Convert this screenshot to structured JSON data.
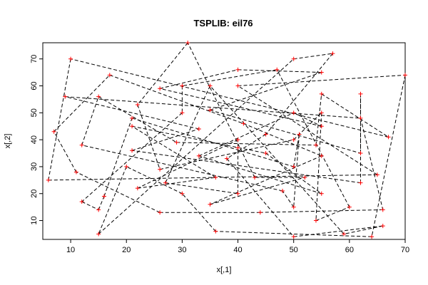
{
  "chart_data": {
    "type": "line",
    "title": "TSPLIB: eil76",
    "xlabel": "x[,1]",
    "ylabel": "x[,2]",
    "xlim": [
      5,
      70
    ],
    "ylim": [
      3,
      76
    ],
    "xticks": [
      10,
      20,
      30,
      40,
      50,
      60,
      70
    ],
    "yticks": [
      10,
      20,
      30,
      40,
      50,
      60,
      70
    ],
    "grid": false,
    "line_style": "dashed",
    "line_color": "#000000",
    "point_color": "#ff0000",
    "point_marker": "plus",
    "points": [
      [
        22,
        22
      ],
      [
        36,
        26
      ],
      [
        21,
        45
      ],
      [
        45,
        35
      ],
      [
        55,
        20
      ],
      [
        33,
        34
      ],
      [
        50,
        50
      ],
      [
        55,
        45
      ],
      [
        26,
        59
      ],
      [
        40,
        66
      ],
      [
        55,
        65
      ],
      [
        35,
        51
      ],
      [
        62,
        35
      ],
      [
        62,
        57
      ],
      [
        62,
        24
      ],
      [
        21,
        36
      ],
      [
        33,
        44
      ],
      [
        9,
        56
      ],
      [
        62,
        48
      ],
      [
        66,
        14
      ],
      [
        44,
        13
      ],
      [
        26,
        13
      ],
      [
        11,
        28
      ],
      [
        7,
        43
      ],
      [
        17,
        64
      ],
      [
        41,
        46
      ],
      [
        55,
        34
      ],
      [
        35,
        16
      ],
      [
        52,
        26
      ],
      [
        43,
        26
      ],
      [
        31,
        76
      ],
      [
        22,
        53
      ],
      [
        26,
        29
      ],
      [
        50,
        40
      ],
      [
        55,
        50
      ],
      [
        54,
        10
      ],
      [
        60,
        15
      ],
      [
        47,
        66
      ],
      [
        30,
        60
      ],
      [
        30,
        50
      ],
      [
        12,
        17
      ],
      [
        15,
        14
      ],
      [
        16,
        19
      ],
      [
        21,
        48
      ],
      [
        50,
        30
      ],
      [
        51,
        42
      ],
      [
        50,
        15
      ],
      [
        48,
        21
      ],
      [
        12,
        38
      ],
      [
        15,
        56
      ],
      [
        29,
        39
      ],
      [
        54,
        38
      ],
      [
        55,
        57
      ],
      [
        67,
        41
      ],
      [
        10,
        70
      ],
      [
        6,
        25
      ],
      [
        65,
        27
      ],
      [
        40,
        60
      ],
      [
        70,
        64
      ],
      [
        64,
        4
      ],
      [
        36,
        6
      ],
      [
        30,
        20
      ],
      [
        20,
        30
      ],
      [
        15,
        5
      ],
      [
        50,
        70
      ],
      [
        57,
        72
      ],
      [
        45,
        42
      ],
      [
        38,
        33
      ],
      [
        50,
        4
      ],
      [
        66,
        8
      ],
      [
        59,
        5
      ],
      [
        35,
        60
      ],
      [
        27,
        24
      ],
      [
        40,
        20
      ],
      [
        40,
        37
      ],
      [
        40,
        40
      ]
    ]
  }
}
